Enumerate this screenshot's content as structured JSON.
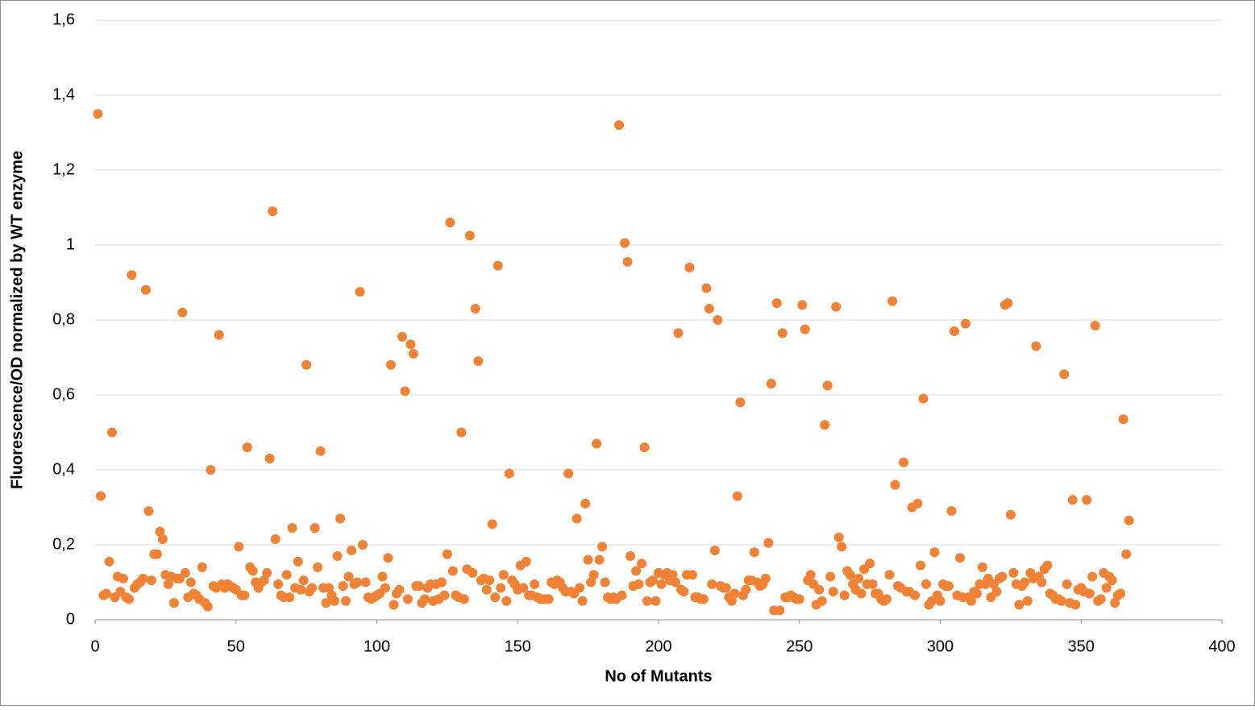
{
  "chart_data": {
    "type": "scatter",
    "x_label": "No of Mutants",
    "y_label": "Fluorescence/OD normalized by WT enzyme",
    "color": "#ef8235",
    "grid": true,
    "xlim": [
      0,
      400
    ],
    "xticks": [
      0,
      50,
      100,
      150,
      200,
      250,
      300,
      350,
      400
    ],
    "ylim": [
      0,
      1.6
    ],
    "yticks": [
      0,
      {
        "value": 0.2,
        "label": "0,2"
      },
      {
        "value": 0.4,
        "label": "0,4"
      },
      {
        "value": 0.6,
        "label": "0,6"
      },
      {
        "value": 0.8,
        "label": "0,8"
      },
      1,
      {
        "value": 1.2,
        "label": "1,2"
      },
      {
        "value": 1.4,
        "label": "1,4"
      },
      {
        "value": 1.6,
        "label": "1,6"
      }
    ],
    "x": [
      1,
      2,
      3,
      4,
      5,
      6,
      7,
      8,
      9,
      10,
      11,
      12,
      13,
      14,
      15,
      16,
      17,
      18,
      19,
      20,
      21,
      22,
      23,
      24,
      25,
      26,
      27,
      28,
      29,
      30,
      31,
      32,
      33,
      34,
      35,
      36,
      37,
      38,
      39,
      40,
      41,
      42,
      43,
      44,
      45,
      46,
      47,
      48,
      49,
      50,
      51,
      52,
      53,
      54,
      55,
      56,
      57,
      58,
      59,
      60,
      61,
      62,
      63,
      64,
      65,
      66,
      67,
      68,
      69,
      70,
      71,
      72,
      73,
      74,
      75,
      76,
      77,
      78,
      79,
      80,
      81,
      82,
      83,
      84,
      85,
      86,
      87,
      88,
      89,
      90,
      91,
      92,
      93,
      94,
      95,
      96,
      97,
      98,
      99,
      100,
      101,
      102,
      103,
      104,
      105,
      106,
      107,
      108,
      109,
      110,
      111,
      112,
      113,
      114,
      115,
      116,
      117,
      118,
      119,
      120,
      121,
      122,
      123,
      124,
      125,
      126,
      127,
      128,
      129,
      130,
      131,
      132,
      133,
      134,
      135,
      136,
      137,
      138,
      139,
      140,
      141,
      142,
      143,
      144,
      145,
      146,
      147,
      148,
      149,
      150,
      151,
      152,
      153,
      154,
      155,
      156,
      157,
      158,
      159,
      160,
      161,
      162,
      163,
      164,
      165,
      166,
      167,
      168,
      169,
      170,
      171,
      172,
      173,
      174,
      175,
      176,
      177,
      178,
      179,
      180,
      181,
      182,
      183,
      184,
      185,
      186,
      187,
      188,
      189,
      190,
      191,
      192,
      193,
      194,
      195,
      196,
      197,
      198,
      199,
      200,
      201,
      202,
      203,
      204,
      205,
      206,
      207,
      208,
      209,
      210,
      211,
      212,
      213,
      214,
      215,
      216,
      217,
      218,
      219,
      220,
      221,
      222,
      223,
      224,
      225,
      226,
      227,
      228,
      229,
      230,
      231,
      232,
      233,
      234,
      235,
      236,
      237,
      238,
      239,
      240,
      241,
      242,
      243,
      244,
      245,
      246,
      247,
      248,
      249,
      250,
      251,
      252,
      253,
      254,
      255,
      256,
      257,
      258,
      259,
      260,
      261,
      262,
      263,
      264,
      265,
      266,
      267,
      268,
      269,
      270,
      271,
      272,
      273,
      274,
      275,
      276,
      277,
      278,
      279,
      280,
      281,
      282,
      283,
      284,
      285,
      286,
      287,
      288,
      289,
      290,
      291,
      292,
      293,
      294,
      295,
      296,
      297,
      298,
      299,
      300,
      301,
      302,
      303,
      304,
      305,
      306,
      307,
      308,
      309,
      310,
      311,
      312,
      313,
      314,
      315,
      316,
      317,
      318,
      319,
      320,
      321,
      322,
      323,
      324,
      325,
      326,
      327,
      328,
      329,
      330,
      331,
      332,
      333,
      334,
      335,
      336,
      337,
      338,
      339,
      340,
      341,
      342,
      343,
      344,
      345,
      346,
      347,
      348,
      349,
      350,
      351,
      352,
      353,
      354,
      355,
      356,
      357,
      358,
      359,
      360,
      361,
      362,
      363,
      364,
      365,
      366,
      367
    ],
    "values": [
      1.35,
      0.33,
      0.065,
      0.07,
      0.155,
      0.5,
      0.06,
      0.115,
      0.075,
      0.11,
      0.06,
      0.055,
      0.92,
      0.085,
      0.095,
      0.1,
      0.11,
      0.88,
      0.29,
      0.105,
      0.175,
      0.175,
      0.235,
      0.215,
      0.12,
      0.095,
      0.115,
      0.045,
      0.11,
      0.11,
      0.82,
      0.125,
      0.06,
      0.1,
      0.07,
      0.065,
      0.055,
      0.14,
      0.045,
      0.035,
      0.4,
      0.09,
      0.085,
      0.76,
      0.095,
      0.085,
      0.095,
      0.09,
      0.085,
      0.08,
      0.195,
      0.065,
      0.065,
      0.46,
      0.14,
      0.13,
      0.1,
      0.085,
      0.1,
      0.105,
      0.125,
      0.43,
      1.09,
      0.215,
      0.095,
      0.065,
      0.06,
      0.12,
      0.06,
      0.245,
      0.085,
      0.155,
      0.08,
      0.105,
      0.68,
      0.075,
      0.085,
      0.245,
      0.14,
      0.45,
      0.085,
      0.045,
      0.085,
      0.065,
      0.05,
      0.17,
      0.27,
      0.09,
      0.05,
      0.115,
      0.185,
      0.095,
      0.1,
      0.875,
      0.2,
      0.1,
      0.06,
      0.055,
      0.06,
      0.065,
      0.07,
      0.115,
      0.085,
      0.165,
      0.68,
      0.04,
      0.07,
      0.08,
      0.755,
      0.61,
      0.055,
      0.735,
      0.71,
      0.09,
      0.09,
      0.045,
      0.055,
      0.085,
      0.095,
      0.05,
      0.095,
      0.055,
      0.1,
      0.065,
      0.175,
      1.06,
      0.13,
      0.065,
      0.06,
      0.5,
      0.055,
      0.135,
      1.025,
      0.125,
      0.83,
      0.69,
      0.105,
      0.11,
      0.08,
      0.105,
      0.255,
      0.06,
      0.945,
      0.085,
      0.12,
      0.05,
      0.39,
      0.105,
      0.095,
      0.08,
      0.145,
      0.085,
      0.155,
      0.065,
      0.065,
      0.095,
      0.06,
      0.055,
      0.055,
      0.055,
      0.055,
      0.1,
      0.095,
      0.105,
      0.1,
      0.085,
      0.075,
      0.39,
      0.075,
      0.07,
      0.27,
      0.085,
      0.05,
      0.31,
      0.16,
      0.1,
      0.12,
      0.47,
      0.16,
      0.195,
      0.1,
      0.06,
      0.055,
      0.06,
      0.055,
      1.32,
      0.065,
      1.005,
      0.955,
      0.17,
      0.09,
      0.13,
      0.095,
      0.15,
      0.46,
      0.05,
      0.1,
      0.105,
      0.05,
      0.125,
      0.095,
      0.12,
      0.125,
      0.105,
      0.12,
      0.1,
      0.765,
      0.08,
      0.075,
      0.12,
      0.94,
      0.12,
      0.06,
      0.06,
      0.055,
      0.055,
      0.885,
      0.83,
      0.095,
      0.185,
      0.8,
      0.09,
      0.085,
      0.085,
      0.06,
      0.05,
      0.07,
      0.33,
      0.58,
      0.065,
      0.08,
      0.105,
      0.105,
      0.18,
      0.1,
      0.09,
      0.095,
      0.11,
      0.205,
      0.63,
      0.025,
      0.845,
      0.025,
      0.765,
      0.06,
      0.06,
      0.065,
      0.06,
      0.055,
      0.055,
      0.84,
      0.775,
      0.105,
      0.12,
      0.095,
      0.04,
      0.08,
      0.05,
      0.52,
      0.625,
      0.115,
      0.075,
      0.835,
      0.22,
      0.195,
      0.065,
      0.13,
      0.12,
      0.095,
      0.08,
      0.11,
      0.07,
      0.135,
      0.095,
      0.15,
      0.095,
      0.07,
      0.07,
      0.055,
      0.05,
      0.055,
      0.12,
      0.85,
      0.36,
      0.09,
      0.085,
      0.42,
      0.075,
      0.075,
      0.3,
      0.065,
      0.31,
      0.145,
      0.59,
      0.095,
      0.04,
      0.05,
      0.18,
      0.065,
      0.05,
      0.095,
      0.09,
      0.09,
      0.29,
      0.77,
      0.065,
      0.165,
      0.06,
      0.79,
      0.06,
      0.05,
      0.075,
      0.07,
      0.095,
      0.14,
      0.095,
      0.11,
      0.06,
      0.095,
      0.075,
      0.11,
      0.115,
      0.84,
      0.845,
      0.28,
      0.125,
      0.095,
      0.04,
      0.09,
      0.1,
      0.05,
      0.125,
      0.11,
      0.73,
      0.115,
      0.1,
      0.135,
      0.145,
      0.07,
      0.065,
      0.055,
      0.055,
      0.05,
      0.655,
      0.095,
      0.045,
      0.32,
      0.04,
      0.08,
      0.085,
      0.075,
      0.32,
      0.07,
      0.115,
      0.785,
      0.05,
      0.055,
      0.125,
      0.085,
      0.115,
      0.105,
      0.045,
      0.065,
      0.07,
      0.535,
      0.175,
      0.265
    ]
  }
}
